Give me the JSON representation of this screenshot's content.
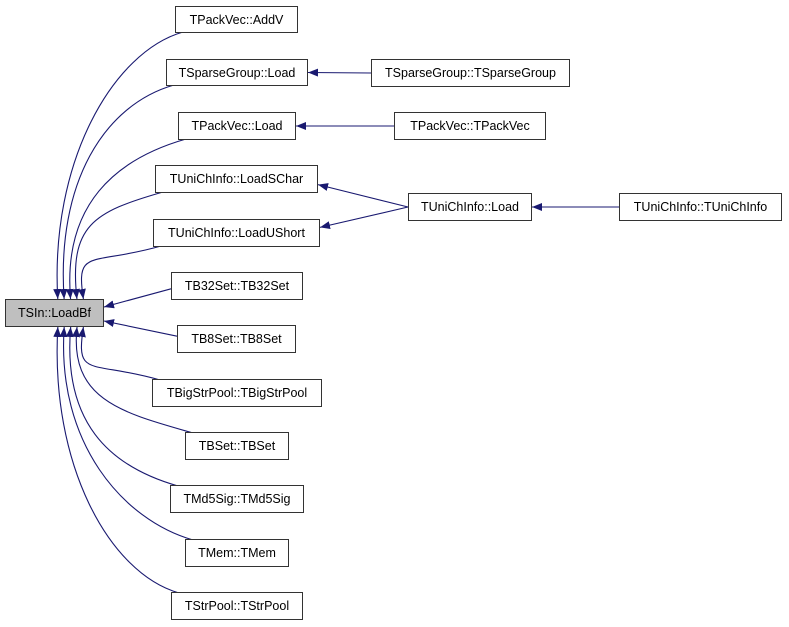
{
  "colors": {
    "edge": "#191970",
    "root_fill": "#bfbfbf",
    "node_border": "#333333"
  },
  "nodes": [
    {
      "id": "root",
      "label": "TSIn::LoadBf",
      "highlighted": true
    },
    {
      "id": "addv",
      "label": "TPackVec::AddV"
    },
    {
      "id": "sgload",
      "label": "TSparseGroup::Load"
    },
    {
      "id": "pvload",
      "label": "TPackVec::Load"
    },
    {
      "id": "loadschar",
      "label": "TUniChInfo::LoadSChar"
    },
    {
      "id": "loadushort",
      "label": "TUniChInfo::LoadUShort"
    },
    {
      "id": "tb32",
      "label": "TB32Set::TB32Set"
    },
    {
      "id": "tb8",
      "label": "TB8Set::TB8Set"
    },
    {
      "id": "bigstr",
      "label": "TBigStrPool::TBigStrPool"
    },
    {
      "id": "tbset",
      "label": "TBSet::TBSet"
    },
    {
      "id": "md5",
      "label": "TMd5Sig::TMd5Sig"
    },
    {
      "id": "tmem",
      "label": "TMem::TMem"
    },
    {
      "id": "strpool",
      "label": "TStrPool::TStrPool"
    },
    {
      "id": "sgctor",
      "label": "TSparseGroup::TSparseGroup"
    },
    {
      "id": "pvctor",
      "label": "TPackVec::TPackVec"
    },
    {
      "id": "ucload",
      "label": "TUniChInfo::Load"
    },
    {
      "id": "ucctor",
      "label": "TUniChInfo::TUniChInfo"
    }
  ],
  "edges": [
    [
      "addv",
      "root"
    ],
    [
      "sgload",
      "root"
    ],
    [
      "pvload",
      "root"
    ],
    [
      "loadschar",
      "root"
    ],
    [
      "loadushort",
      "root"
    ],
    [
      "tb32",
      "root"
    ],
    [
      "tb8",
      "root"
    ],
    [
      "bigstr",
      "root"
    ],
    [
      "tbset",
      "root"
    ],
    [
      "md5",
      "root"
    ],
    [
      "tmem",
      "root"
    ],
    [
      "strpool",
      "root"
    ],
    [
      "sgctor",
      "sgload"
    ],
    [
      "pvctor",
      "pvload"
    ],
    [
      "ucload",
      "loadschar"
    ],
    [
      "ucload",
      "loadushort"
    ],
    [
      "ucctor",
      "ucload"
    ]
  ]
}
